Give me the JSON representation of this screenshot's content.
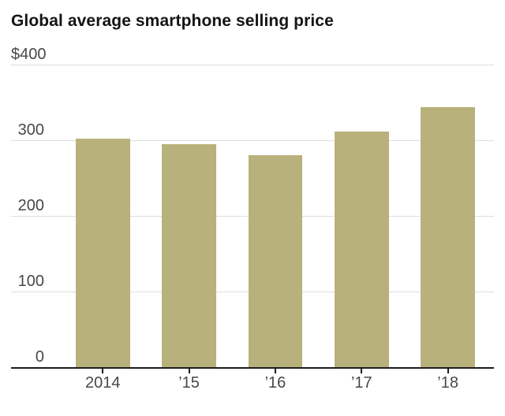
{
  "title": "Global average smartphone selling price",
  "chart_data": {
    "type": "bar",
    "title": "Global average smartphone selling price",
    "categories": [
      "2014",
      "’15",
      "’16",
      "’17",
      "’18"
    ],
    "values": [
      303,
      296,
      281,
      313,
      345
    ],
    "currency_unit": "$",
    "xlabel": "",
    "ylabel": "",
    "ylim": [
      0,
      400
    ],
    "yticks": [
      {
        "value": 400,
        "label": "$400"
      },
      {
        "value": 300,
        "label": "300"
      },
      {
        "value": 200,
        "label": "200"
      },
      {
        "value": 100,
        "label": "100"
      },
      {
        "value": 0,
        "label": "0"
      }
    ],
    "grid": true,
    "legend": false
  },
  "colors": {
    "background": "#ffffff",
    "bar": "#b9b17b",
    "gridline": "#dedede",
    "axis": "#1d1d1d",
    "title": "#141414",
    "label": "#484848"
  }
}
